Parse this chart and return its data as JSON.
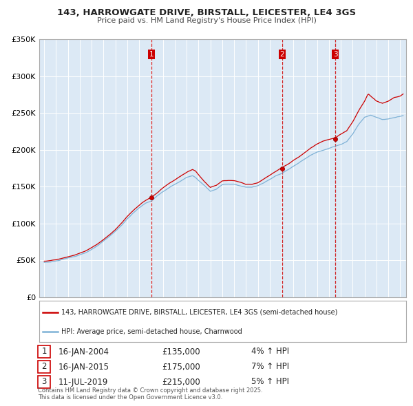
{
  "title": "143, HARROWGATE DRIVE, BIRSTALL, LEICESTER, LE4 3GS",
  "subtitle": "Price paid vs. HM Land Registry's House Price Index (HPI)",
  "property_label": "143, HARROWGATE DRIVE, BIRSTALL, LEICESTER, LE4 3GS (semi-detached house)",
  "hpi_label": "HPI: Average price, semi-detached house, Charnwood",
  "footer": "Contains HM Land Registry data © Crown copyright and database right 2025.\nThis data is licensed under the Open Government Licence v3.0.",
  "ylim": [
    0,
    350000
  ],
  "yticks": [
    0,
    50000,
    100000,
    150000,
    200000,
    250000,
    300000,
    350000
  ],
  "ytick_labels": [
    "£0",
    "£50K",
    "£100K",
    "£150K",
    "£200K",
    "£250K",
    "£300K",
    "£350K"
  ],
  "hpi_color": "#7fb2d6",
  "property_color": "#cc0000",
  "vline_color": "#cc0000",
  "sale_dates_num": [
    2004.04,
    2015.04,
    2019.54
  ],
  "sale_labels": [
    "1",
    "2",
    "3"
  ],
  "sale_prices": [
    135000,
    175000,
    215000
  ],
  "sale_info": [
    {
      "num": "1",
      "date": "16-JAN-2004",
      "price": "£135,000",
      "hpi": "4% ↑ HPI"
    },
    {
      "num": "2",
      "date": "16-JAN-2015",
      "price": "£175,000",
      "hpi": "7% ↑ HPI"
    },
    {
      "num": "3",
      "date": "11-JUL-2019",
      "price": "£215,000",
      "hpi": "5% ↑ HPI"
    }
  ],
  "background_color": "#dce9f5",
  "plot_bg": "#dce9f5",
  "xlim_left": 1994.58,
  "xlim_right": 2025.5
}
